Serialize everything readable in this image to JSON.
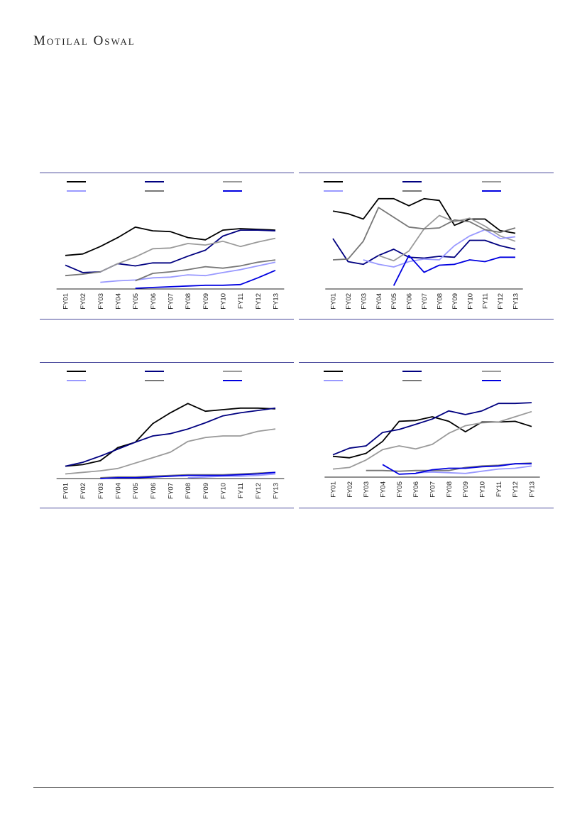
{
  "header": {
    "brand": "Motilal Oswal"
  },
  "colors": {
    "rule": "#4a4a9c",
    "axis": "#222222",
    "series_palette": [
      "#000000",
      "#000080",
      "#9a9a9a",
      "#9999ff",
      "#777777",
      "#0000e0"
    ]
  },
  "chart_data": [
    {
      "type": "line",
      "categories": [
        "FY01",
        "FY02",
        "FY03",
        "FY04",
        "FY05",
        "FY06",
        "FY07",
        "FY08",
        "FY09",
        "FY10",
        "FY11",
        "FY12",
        "FY13"
      ],
      "ylim": [
        0,
        100
      ],
      "legend": "top",
      "grid": false,
      "series": [
        {
          "color": "#000000",
          "values": [
            44,
            46,
            56,
            68,
            82,
            77,
            76,
            68,
            65,
            78,
            80,
            79,
            78
          ]
        },
        {
          "color": "#000080",
          "values": [
            31,
            21,
            22,
            33,
            30,
            34,
            34,
            43,
            51,
            70,
            78,
            78,
            77
          ]
        },
        {
          "color": "#9a9a9a",
          "values": [
            null,
            null,
            22,
            33,
            42,
            53,
            54,
            60,
            58,
            63,
            56,
            62,
            67
          ]
        },
        {
          "color": "#9999ff",
          "values": [
            null,
            null,
            8,
            10,
            11,
            14,
            15,
            18,
            17,
            21,
            25,
            30,
            35
          ]
        },
        {
          "color": "#777777",
          "values": [
            17,
            19,
            22,
            null,
            10,
            20,
            22,
            25,
            29,
            27,
            30,
            35,
            38
          ]
        },
        {
          "color": "#0000e0",
          "values": [
            null,
            null,
            null,
            null,
            0,
            1,
            2,
            3,
            4,
            4,
            5,
            14,
            24
          ]
        }
      ]
    },
    {
      "type": "line",
      "categories": [
        "FY01",
        "FY02",
        "FY03",
        "FY04",
        "FY05",
        "FY06",
        "FY07",
        "FY08",
        "FY09",
        "FY10",
        "FY11",
        "FY12",
        "FY13"
      ],
      "ylim": [
        0,
        100
      ],
      "legend": "top",
      "grid": false,
      "series": [
        {
          "color": "#000000",
          "values": [
            87,
            84,
            78,
            101,
            101,
            93,
            101,
            99,
            71,
            78,
            78,
            65,
            62
          ]
        },
        {
          "color": "#000080",
          "values": [
            56,
            30,
            27,
            37,
            44,
            35,
            34,
            36,
            35,
            54,
            54,
            48,
            44
          ]
        },
        {
          "color": "#9a9a9a",
          "values": [
            null,
            null,
            null,
            37,
            31,
            42,
            67,
            82,
            75,
            79,
            70,
            59,
            53
          ]
        },
        {
          "color": "#9999ff",
          "values": [
            null,
            null,
            32,
            27,
            24,
            30,
            33,
            32,
            48,
            59,
            66,
            56,
            58
          ]
        },
        {
          "color": "#777777",
          "values": [
            32,
            33,
            53,
            91,
            80,
            69,
            67,
            68,
            77,
            75,
            66,
            63,
            68
          ]
        },
        {
          "color": "#0000e0",
          "values": [
            null,
            null,
            null,
            null,
            3,
            37,
            18,
            26,
            27,
            32,
            30,
            35,
            35
          ]
        }
      ]
    },
    {
      "type": "line",
      "categories": [
        "FY01",
        "FY02",
        "FY03",
        "FY04",
        "FY05",
        "FY06",
        "FY07",
        "FY08",
        "FY09",
        "FY10",
        "FY11",
        "FY12",
        "FY13"
      ],
      "ylim": [
        0,
        100
      ],
      "legend": "top",
      "grid": false,
      "series": [
        {
          "color": "#000000",
          "values": [
            16,
            18,
            23,
            40,
            47,
            71,
            85,
            97,
            87,
            89,
            91,
            91,
            90
          ]
        },
        {
          "color": "#000080",
          "values": [
            16,
            21,
            29,
            38,
            47,
            55,
            58,
            64,
            72,
            81,
            85,
            88,
            91
          ]
        },
        {
          "color": "#9a9a9a",
          "values": [
            6,
            8,
            10,
            13,
            20,
            27,
            34,
            48,
            53,
            55,
            55,
            61,
            64
          ]
        },
        {
          "color": "#9999ff",
          "values": [
            null,
            null,
            null,
            null,
            null,
            null,
            null,
            1,
            2,
            3,
            3,
            4,
            6
          ]
        },
        {
          "color": "#777777",
          "values": [
            null,
            null,
            1,
            2,
            2,
            3,
            4,
            5,
            5,
            5,
            6,
            7,
            8
          ]
        },
        {
          "color": "#0000e0",
          "values": [
            null,
            null,
            0,
            1,
            1,
            2,
            3,
            4,
            4,
            4,
            5,
            6,
            8
          ]
        }
      ]
    },
    {
      "type": "line",
      "categories": [
        "FY01",
        "FY02",
        "FY03",
        "FY04",
        "FY05",
        "FY06",
        "FY07",
        "FY08",
        "FY09",
        "FY10",
        "FY11",
        "FY12",
        "FY13"
      ],
      "ylim": [
        0,
        100
      ],
      "legend": "top",
      "grid": false,
      "series": [
        {
          "color": "#000000",
          "values": [
            26,
            24,
            30,
            46,
            73,
            74,
            79,
            73,
            59,
            72,
            72,
            73,
            66
          ]
        },
        {
          "color": "#000080",
          "values": [
            28,
            37,
            40,
            58,
            62,
            69,
            76,
            87,
            82,
            87,
            97,
            97,
            98
          ]
        },
        {
          "color": "#9a9a9a",
          "values": [
            9,
            11,
            21,
            35,
            40,
            36,
            42,
            57,
            67,
            71,
            72,
            79,
            86
          ]
        },
        {
          "color": "#9999ff",
          "values": [
            null,
            null,
            null,
            null,
            null,
            4,
            5,
            4,
            3,
            6,
            9,
            10,
            13
          ]
        },
        {
          "color": "#777777",
          "values": [
            null,
            null,
            7,
            7,
            6,
            7,
            7,
            7,
            11,
            13,
            14,
            16,
            17
          ]
        },
        {
          "color": "#0000e0",
          "values": [
            null,
            null,
            null,
            15,
            2,
            3,
            8,
            10,
            10,
            12,
            13,
            16,
            16
          ]
        }
      ]
    }
  ]
}
